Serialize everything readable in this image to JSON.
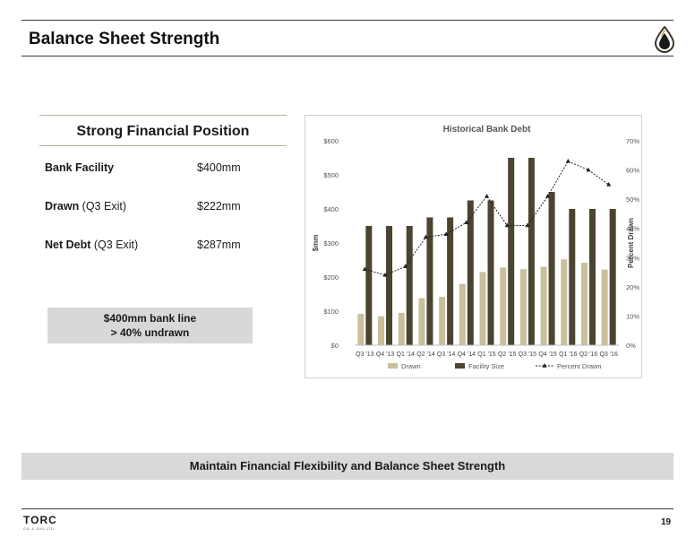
{
  "header": {
    "title": "Balance Sheet Strength"
  },
  "financial_position": {
    "title": "Strong Financial Position",
    "rows": [
      {
        "label": "Bank Facility",
        "qualifier": "",
        "value": "$400mm"
      },
      {
        "label": "Drawn",
        "qualifier": " (Q3 Exit)",
        "value": "$222mm"
      },
      {
        "label": "Net Debt",
        "qualifier": " (Q3 Exit)",
        "value": "$287mm"
      }
    ],
    "callout": {
      "line1": "$400mm bank line",
      "line2": "> 40% undrawn"
    }
  },
  "chart_data": {
    "type": "bar",
    "title": "Historical Bank Debt",
    "ylabel": "$mm",
    "y2label": "Percent Drawn",
    "ylim": [
      0,
      600
    ],
    "y2lim": [
      0,
      70
    ],
    "yticks": [
      "$0",
      "$100",
      "$200",
      "$300",
      "$400",
      "$500",
      "$600"
    ],
    "y2ticks": [
      "0%",
      "10%",
      "20%",
      "30%",
      "40%",
      "50%",
      "60%",
      "70%"
    ],
    "categories": [
      "Q3 '13",
      "Q4 '13",
      "Q1 '14",
      "Q2 '14",
      "Q3 '14",
      "Q4 '14",
      "Q1 '15",
      "Q2 '15",
      "Q3 '15",
      "Q4 '15",
      "Q1 '16",
      "Q2 '16",
      "Q3 '16"
    ],
    "series": [
      {
        "name": "Drawn",
        "type": "bar",
        "color": "#c8bf9c",
        "values": [
          92,
          85,
          95,
          138,
          142,
          180,
          215,
          228,
          223,
          230,
          252,
          242,
          222
        ]
      },
      {
        "name": "Facility Size",
        "type": "bar",
        "color": "#4a4430",
        "values": [
          350,
          350,
          350,
          375,
          375,
          425,
          425,
          550,
          550,
          450,
          400,
          400,
          400
        ]
      },
      {
        "name": "Percent Drawn",
        "type": "line",
        "axis": "secondary",
        "color": "#222222",
        "values": [
          26,
          24,
          27,
          37,
          38,
          42,
          51,
          41,
          41,
          51,
          63,
          60,
          55
        ]
      }
    ],
    "legend": "bottom",
    "grid": false
  },
  "banner": {
    "text": "Maintain Financial Flexibility and Balance Sheet Strength"
  },
  "footer": {
    "brand": "TORC",
    "brand_sub": "OIL & GAS LTD.",
    "page_number": "19"
  }
}
